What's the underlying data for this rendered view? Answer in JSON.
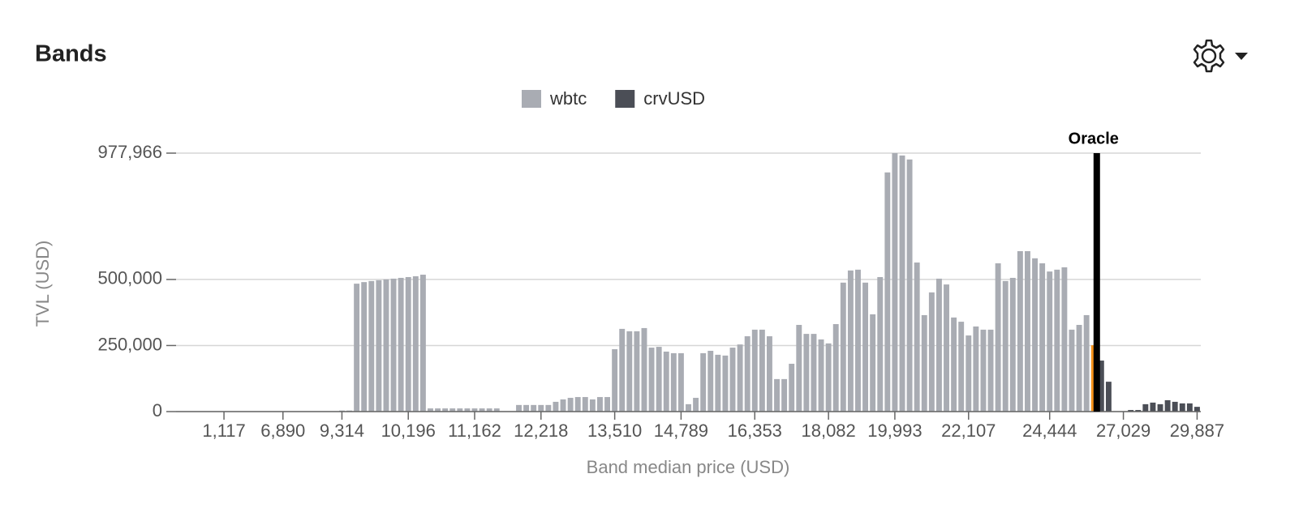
{
  "title": "Bands",
  "chart_data": {
    "type": "bar",
    "stacked": true,
    "grid": true,
    "xlabel": "Band median price (USD)",
    "ylabel": "TVL (USD)",
    "oracle_label": "Oracle",
    "oracle_color": "#000000",
    "oracle_band_color": "#f7931a",
    "legend": "top",
    "ylim": [
      0,
      977966
    ],
    "yticks": [
      0,
      {
        "value": 250000,
        "label": "250,000"
      },
      {
        "value": 500000,
        "label": "500,000"
      },
      {
        "value": 977966,
        "label": "977,966"
      }
    ],
    "categories": [
      null,
      null,
      null,
      null,
      null,
      null,
      "1,117",
      null,
      null,
      null,
      null,
      null,
      null,
      null,
      "6,890",
      null,
      null,
      null,
      null,
      null,
      null,
      null,
      "9,314",
      null,
      null,
      null,
      null,
      null,
      null,
      null,
      null,
      "10,196",
      null,
      null,
      null,
      null,
      null,
      null,
      null,
      null,
      "11,162",
      null,
      null,
      null,
      null,
      null,
      null,
      null,
      null,
      "12,218",
      null,
      null,
      null,
      null,
      null,
      null,
      null,
      null,
      null,
      "13,510",
      null,
      null,
      null,
      null,
      null,
      null,
      null,
      null,
      "14,789",
      null,
      null,
      null,
      null,
      null,
      null,
      null,
      null,
      null,
      "16,353",
      null,
      null,
      null,
      null,
      null,
      null,
      null,
      null,
      null,
      "18,082",
      null,
      null,
      null,
      null,
      null,
      null,
      null,
      null,
      "19,993",
      null,
      null,
      null,
      null,
      null,
      null,
      null,
      null,
      null,
      "22,107",
      null,
      null,
      null,
      null,
      null,
      null,
      null,
      null,
      null,
      null,
      "24,444",
      null,
      null,
      null,
      null,
      null,
      null,
      null,
      null,
      null,
      "27,029",
      null,
      null,
      null,
      null,
      null,
      null,
      null,
      null,
      null,
      "29,887"
    ],
    "series": [
      {
        "name": "wbtc",
        "color": "#a9acb3",
        "values": [
          0,
          0,
          0,
          0,
          0,
          0,
          0,
          0,
          0,
          0,
          0,
          0,
          0,
          0,
          0,
          0,
          0,
          0,
          0,
          0,
          0,
          0,
          4000,
          4000,
          484000,
          490000,
          494000,
          497000,
          500000,
          503000,
          506000,
          509000,
          512000,
          518000,
          12000,
          12000,
          12000,
          12000,
          12000,
          12000,
          12000,
          12000,
          12000,
          12000,
          0,
          0,
          25000,
          25000,
          25000,
          25000,
          25000,
          37000,
          46000,
          52000,
          55000,
          55000,
          46000,
          55000,
          55000,
          236000,
          313000,
          304000,
          304000,
          316000,
          242000,
          245000,
          227000,
          221000,
          221000,
          28000,
          52000,
          221000,
          230000,
          215000,
          212000,
          242000,
          254000,
          285000,
          310000,
          310000,
          285000,
          123000,
          123000,
          181000,
          328000,
          294000,
          294000,
          273000,
          258000,
          331000,
          488000,
          534000,
          537000,
          488000,
          368000,
          509000,
          905000,
          977966,
          969000,
          954000,
          564000,
          365000,
          451000,
          503000,
          481000,
          356000,
          340000,
          288000,
          322000,
          310000,
          310000,
          561000,
          494000,
          506000,
          607000,
          607000,
          580000,
          561000,
          530000,
          537000,
          546000,
          310000,
          328000,
          365000,
          251000,
          0,
          0,
          0,
          0,
          0,
          0,
          0,
          0,
          0,
          0,
          0,
          0,
          0,
          0
        ]
      },
      {
        "name": "crvUSD",
        "color": "#4b4e56",
        "values": [
          0,
          0,
          0,
          0,
          0,
          0,
          0,
          0,
          0,
          0,
          0,
          0,
          0,
          0,
          0,
          0,
          0,
          0,
          0,
          0,
          0,
          0,
          0,
          0,
          0,
          0,
          0,
          0,
          0,
          0,
          0,
          0,
          0,
          0,
          0,
          0,
          0,
          0,
          0,
          0,
          0,
          0,
          0,
          0,
          0,
          0,
          0,
          0,
          0,
          0,
          0,
          0,
          0,
          0,
          0,
          0,
          0,
          0,
          0,
          0,
          0,
          0,
          0,
          0,
          0,
          0,
          0,
          0,
          0,
          0,
          0,
          0,
          0,
          0,
          0,
          0,
          0,
          0,
          0,
          0,
          0,
          0,
          0,
          0,
          0,
          0,
          0,
          0,
          0,
          0,
          0,
          0,
          0,
          0,
          0,
          0,
          0,
          0,
          0,
          0,
          0,
          0,
          0,
          0,
          0,
          0,
          0,
          0,
          0,
          0,
          0,
          0,
          0,
          0,
          0,
          0,
          0,
          0,
          0,
          0,
          0,
          0,
          0,
          0,
          0,
          193000,
          113000,
          0,
          0,
          6000,
          6000,
          28000,
          34000,
          28000,
          43000,
          37000,
          31000,
          31000,
          18000
        ]
      }
    ]
  }
}
